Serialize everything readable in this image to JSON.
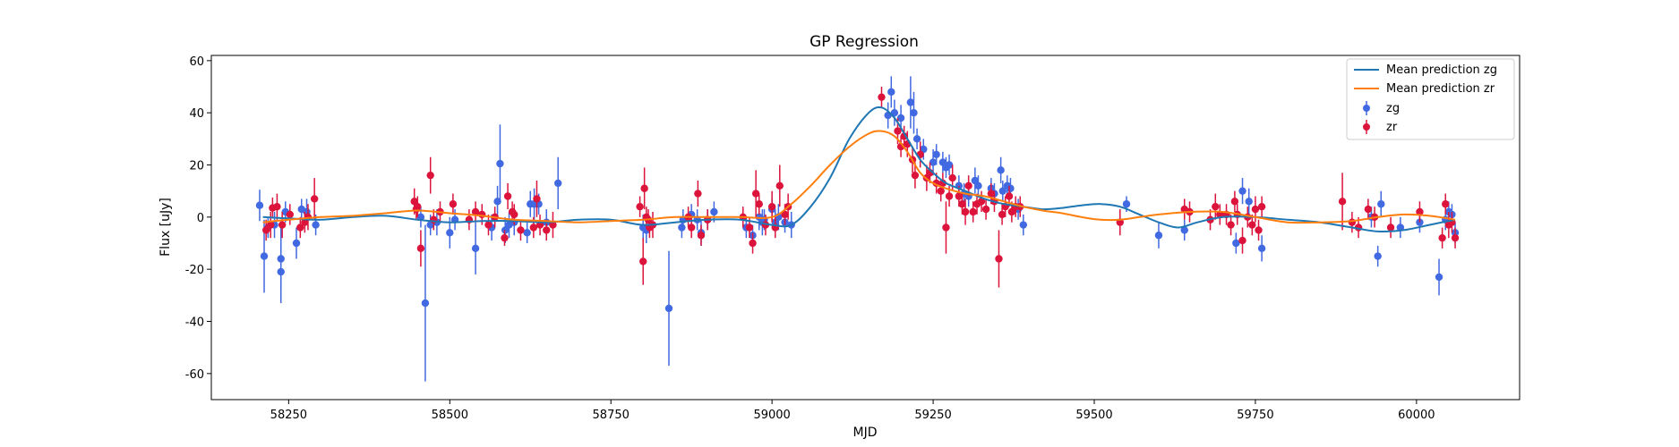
{
  "chart_data": {
    "type": "scatter",
    "title": "GP Regression",
    "xlabel": "MJD",
    "ylabel": "Flux [uJy]",
    "xlim": [
      58130,
      60160
    ],
    "ylim": [
      -70,
      62
    ],
    "xticks": [
      58250,
      58500,
      58750,
      59000,
      59250,
      59500,
      59750,
      60000
    ],
    "yticks": [
      -60,
      -40,
      -20,
      0,
      20,
      40,
      60
    ],
    "grid": false,
    "legend_position": "top-right",
    "legend": [
      {
        "label": "Mean prediction zg",
        "kind": "line",
        "color": "#1f77b4"
      },
      {
        "label": "Mean prediction zr",
        "kind": "line",
        "color": "#ff7f0e"
      },
      {
        "label": "zg",
        "kind": "errorbar",
        "color": "#4169e1"
      },
      {
        "label": "zr",
        "kind": "errorbar",
        "color": "#dc143c"
      }
    ],
    "lines": [
      {
        "name": "Mean prediction zg",
        "color": "#1f77b4",
        "x": [
          58210,
          58250,
          58300,
          58350,
          58400,
          58450,
          58500,
          58550,
          58600,
          58650,
          58700,
          58750,
          58800,
          58850,
          58900,
          58950,
          59000,
          59030,
          59060,
          59090,
          59120,
          59150,
          59170,
          59190,
          59210,
          59230,
          59250,
          59270,
          59300,
          59330,
          59360,
          59390,
          59420,
          59450,
          59480,
          59510,
          59540,
          59570,
          59600,
          59630,
          59660,
          59700,
          59750,
          59800,
          59850,
          59900,
          59940,
          59980,
          60020,
          60060
        ],
        "y": [
          0,
          -0.5,
          -1,
          0,
          0.5,
          -1,
          -2,
          -1.5,
          -1.5,
          -2,
          -1,
          -1,
          -3,
          -2,
          -1,
          -1,
          -3,
          -3,
          4,
          15,
          30,
          40,
          42,
          38,
          30,
          22,
          17,
          13,
          10,
          7,
          5,
          4,
          3,
          3.5,
          4.5,
          5,
          4,
          1,
          -2,
          -4,
          -2,
          0,
          0,
          -1,
          -2,
          -4,
          -5.5,
          -5,
          -3,
          -1
        ]
      },
      {
        "name": "Mean prediction zr",
        "color": "#ff7f0e",
        "x": [
          58210,
          58250,
          58300,
          58350,
          58400,
          58450,
          58500,
          58550,
          58600,
          58650,
          58700,
          58750,
          58800,
          58850,
          58900,
          58950,
          59000,
          59030,
          59060,
          59090,
          59120,
          59150,
          59170,
          59190,
          59210,
          59230,
          59250,
          59270,
          59300,
          59330,
          59360,
          59390,
          59420,
          59450,
          59480,
          59510,
          59540,
          59570,
          59600,
          59650,
          59700,
          59750,
          59800,
          59850,
          59900,
          59940,
          59980,
          60020,
          60060
        ],
        "y": [
          -2,
          -1,
          0,
          0.5,
          1.5,
          2.5,
          1.5,
          0.5,
          -1,
          -1.5,
          -2,
          -1.5,
          -1,
          0,
          0,
          0,
          0,
          5,
          12,
          20,
          27,
          32,
          33,
          31,
          25,
          17,
          13,
          11,
          9,
          8,
          6,
          4,
          2.5,
          1.5,
          0,
          -1,
          -1,
          0,
          1,
          2,
          2,
          0,
          -2,
          -2,
          -1.5,
          0,
          1,
          0.5,
          -1
        ]
      }
    ],
    "series": [
      {
        "name": "zg",
        "color": "#4169e1",
        "points": [
          [
            58205,
            4.5,
            6
          ],
          [
            58212,
            -15,
            14
          ],
          [
            58218,
            -4,
            4
          ],
          [
            58228,
            -3,
            5
          ],
          [
            58238,
            -16,
            12
          ],
          [
            58238,
            -21,
            12
          ],
          [
            58245,
            2,
            4
          ],
          [
            58262,
            -10,
            6
          ],
          [
            58270,
            3,
            4
          ],
          [
            58278,
            2,
            5
          ],
          [
            58292,
            -3,
            4
          ],
          [
            58455,
            0,
            4
          ],
          [
            58462,
            -33,
            30
          ],
          [
            58470,
            -3,
            4
          ],
          [
            58480,
            -2,
            5
          ],
          [
            58500,
            -6,
            6
          ],
          [
            58508,
            -1,
            4
          ],
          [
            58540,
            -12,
            10
          ],
          [
            58565,
            -4,
            5
          ],
          [
            58574,
            6,
            6
          ],
          [
            58578,
            20.5,
            15
          ],
          [
            58586,
            -5,
            5
          ],
          [
            58592,
            -3,
            5
          ],
          [
            58600,
            -2,
            5
          ],
          [
            58620,
            -6,
            4
          ],
          [
            58625,
            5,
            5
          ],
          [
            58631,
            5,
            6
          ],
          [
            58638,
            5,
            4
          ],
          [
            58650,
            -2,
            5
          ],
          [
            58668,
            13,
            10
          ],
          [
            58800,
            -4,
            5
          ],
          [
            58805,
            -5,
            5
          ],
          [
            58840,
            -35,
            22
          ],
          [
            58860,
            -4,
            4
          ],
          [
            58862,
            -1,
            4
          ],
          [
            58875,
            1,
            4
          ],
          [
            58884,
            -1,
            4
          ],
          [
            58890,
            -6,
            5
          ],
          [
            58900,
            -1,
            4
          ],
          [
            58910,
            2,
            4
          ],
          [
            58960,
            -4,
            4
          ],
          [
            58970,
            -7,
            4
          ],
          [
            58980,
            0,
            5
          ],
          [
            58985,
            -2,
            5
          ],
          [
            58988,
            -1,
            4
          ],
          [
            59000,
            3,
            4
          ],
          [
            59005,
            -2,
            5
          ],
          [
            59010,
            0,
            5
          ],
          [
            59020,
            -2,
            4
          ],
          [
            59030,
            -3,
            5
          ],
          [
            59180,
            39,
            5
          ],
          [
            59185,
            48,
            6
          ],
          [
            59190,
            40,
            5
          ],
          [
            59200,
            38,
            5
          ],
          [
            59215,
            44,
            10
          ],
          [
            59220,
            40,
            8
          ],
          [
            59225,
            30,
            4
          ],
          [
            59235,
            26,
            4
          ],
          [
            59250,
            21,
            5
          ],
          [
            59255,
            24,
            4
          ],
          [
            59265,
            21,
            4
          ],
          [
            59270,
            19,
            4
          ],
          [
            59275,
            20,
            4
          ],
          [
            59290,
            12,
            4
          ],
          [
            59298,
            9,
            4
          ],
          [
            59305,
            8,
            4
          ],
          [
            59315,
            14,
            5
          ],
          [
            59320,
            12,
            4
          ],
          [
            59340,
            11,
            4
          ],
          [
            59345,
            9,
            4
          ],
          [
            59355,
            18,
            5
          ],
          [
            59358,
            10,
            4
          ],
          [
            59365,
            12,
            4
          ],
          [
            59370,
            11,
            4
          ],
          [
            59382,
            3,
            4
          ],
          [
            59390,
            -3,
            4
          ],
          [
            59550,
            5,
            3
          ],
          [
            59600,
            -7,
            5
          ],
          [
            59640,
            -5,
            4
          ],
          [
            59720,
            -10,
            4
          ],
          [
            59730,
            10,
            5
          ],
          [
            59740,
            6,
            5
          ],
          [
            59760,
            -12,
            5
          ],
          [
            59930,
            0,
            4
          ],
          [
            59940,
            -15,
            4
          ],
          [
            59945,
            5,
            5
          ],
          [
            59975,
            -4,
            4
          ],
          [
            60005,
            -2,
            4
          ],
          [
            60035,
            -23,
            7
          ],
          [
            60045,
            -1,
            4
          ],
          [
            60050,
            2,
            4
          ],
          [
            60055,
            1,
            4
          ],
          [
            60060,
            -6,
            4
          ]
        ]
      },
      {
        "name": "zr",
        "color": "#dc143c",
        "points": [
          [
            58215,
            -5,
            4
          ],
          [
            58222,
            -3,
            5
          ],
          [
            58225,
            3.5,
            4
          ],
          [
            58232,
            4,
            5
          ],
          [
            58240,
            -3,
            5
          ],
          [
            58252,
            1,
            4
          ],
          [
            58268,
            -4,
            4
          ],
          [
            58275,
            -2,
            4
          ],
          [
            58280,
            0,
            5
          ],
          [
            58290,
            7,
            8
          ],
          [
            58445,
            6,
            5
          ],
          [
            58448,
            3,
            4
          ],
          [
            58450,
            4,
            4
          ],
          [
            58455,
            -12,
            7
          ],
          [
            58470,
            16,
            7
          ],
          [
            58475,
            -1,
            4
          ],
          [
            58485,
            2,
            4
          ],
          [
            58505,
            5,
            4
          ],
          [
            58530,
            -1,
            4
          ],
          [
            58540,
            2,
            4
          ],
          [
            58550,
            1,
            4
          ],
          [
            58560,
            -3,
            4
          ],
          [
            58570,
            0,
            4
          ],
          [
            58585,
            -8,
            3
          ],
          [
            58590,
            8,
            5
          ],
          [
            58597,
            2,
            4
          ],
          [
            58600,
            1,
            4
          ],
          [
            58610,
            -5,
            4
          ],
          [
            58630,
            -4,
            4
          ],
          [
            58635,
            7,
            7
          ],
          [
            58640,
            -3,
            4
          ],
          [
            58650,
            -5,
            4
          ],
          [
            58660,
            -3,
            5
          ],
          [
            58795,
            4,
            4
          ],
          [
            58800,
            -17,
            9
          ],
          [
            58802,
            11,
            8
          ],
          [
            58805,
            0,
            4
          ],
          [
            58808,
            -1,
            4
          ],
          [
            58810,
            -4,
            4
          ],
          [
            58815,
            -3,
            5
          ],
          [
            58870,
            0,
            4
          ],
          [
            58875,
            -4,
            4
          ],
          [
            58885,
            9,
            5
          ],
          [
            58890,
            -7,
            4
          ],
          [
            58900,
            -1,
            4
          ],
          [
            58955,
            0,
            4
          ],
          [
            58965,
            -4,
            4
          ],
          [
            58970,
            -10,
            4
          ],
          [
            58975,
            9,
            9
          ],
          [
            58980,
            5,
            4
          ],
          [
            58990,
            -3,
            4
          ],
          [
            59000,
            4,
            6
          ],
          [
            59005,
            -4,
            4
          ],
          [
            59012,
            12,
            8
          ],
          [
            59020,
            1,
            4
          ],
          [
            59025,
            4,
            5
          ],
          [
            59170,
            46,
            4
          ],
          [
            59195,
            33,
            5
          ],
          [
            59200,
            27,
            4
          ],
          [
            59205,
            31,
            4
          ],
          [
            59210,
            28,
            5
          ],
          [
            59218,
            22,
            5
          ],
          [
            59222,
            16,
            5
          ],
          [
            59230,
            24,
            5
          ],
          [
            59240,
            15,
            5
          ],
          [
            59245,
            17,
            4
          ],
          [
            59255,
            13,
            4
          ],
          [
            59262,
            10,
            4
          ],
          [
            59265,
            13,
            4
          ],
          [
            59270,
            -4,
            10
          ],
          [
            59275,
            8,
            4
          ],
          [
            59280,
            15,
            5
          ],
          [
            59290,
            8,
            4
          ],
          [
            59295,
            5,
            4
          ],
          [
            59300,
            2,
            5
          ],
          [
            59305,
            12,
            4
          ],
          [
            59312,
            2,
            4
          ],
          [
            59318,
            5,
            4
          ],
          [
            59325,
            6,
            4
          ],
          [
            59332,
            3,
            4
          ],
          [
            59340,
            9,
            4
          ],
          [
            59345,
            6,
            4
          ],
          [
            59352,
            -16,
            11
          ],
          [
            59357,
            1,
            4
          ],
          [
            59362,
            4,
            4
          ],
          [
            59368,
            8,
            4
          ],
          [
            59372,
            2,
            4
          ],
          [
            59378,
            4,
            4
          ],
          [
            59385,
            4,
            4
          ],
          [
            59540,
            -2,
            5
          ],
          [
            59640,
            3,
            4
          ],
          [
            59648,
            2,
            4
          ],
          [
            59680,
            -1,
            4
          ],
          [
            59688,
            4,
            5
          ],
          [
            59695,
            1,
            4
          ],
          [
            59705,
            1,
            4
          ],
          [
            59712,
            -3,
            4
          ],
          [
            59718,
            6,
            4
          ],
          [
            59722,
            1,
            4
          ],
          [
            59730,
            -9,
            5
          ],
          [
            59738,
            0,
            4
          ],
          [
            59745,
            -3,
            4
          ],
          [
            59750,
            3,
            5
          ],
          [
            59755,
            -5,
            4
          ],
          [
            59760,
            4,
            4
          ],
          [
            59885,
            6,
            11
          ],
          [
            59900,
            -2,
            4
          ],
          [
            59910,
            -4,
            4
          ],
          [
            59925,
            3,
            4
          ],
          [
            59935,
            0,
            4
          ],
          [
            59960,
            -4,
            4
          ],
          [
            60005,
            2,
            4
          ],
          [
            60040,
            -8,
            4
          ],
          [
            60045,
            5,
            4
          ],
          [
            60050,
            -3,
            5
          ],
          [
            60055,
            -2,
            4
          ],
          [
            60060,
            -8,
            4
          ]
        ]
      }
    ]
  }
}
